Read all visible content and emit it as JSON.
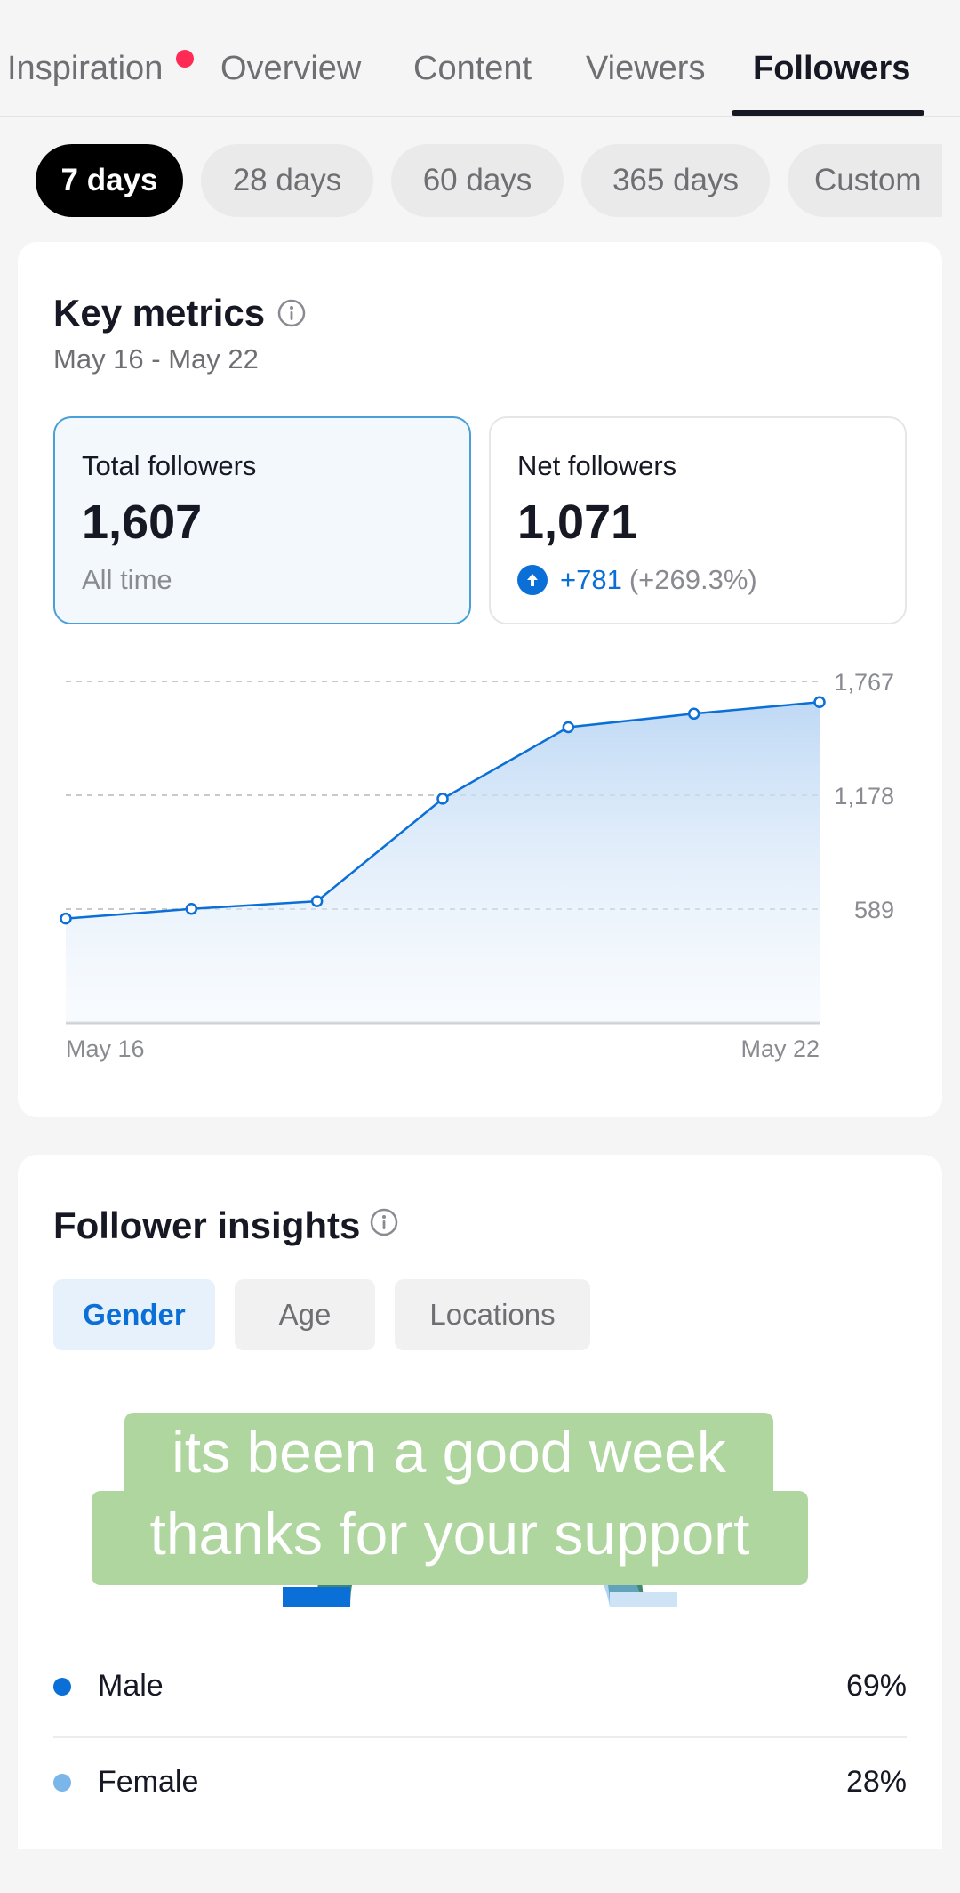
{
  "tabs": [
    {
      "label": "Inspiration",
      "has_notification": true
    },
    {
      "label": "Overview"
    },
    {
      "label": "Content"
    },
    {
      "label": "Viewers"
    },
    {
      "label": "Followers",
      "active": true
    }
  ],
  "ranges": [
    {
      "label": "7 days",
      "active": true
    },
    {
      "label": "28 days"
    },
    {
      "label": "60 days"
    },
    {
      "label": "365 days"
    },
    {
      "label": "Custom"
    }
  ],
  "key_metrics": {
    "title": "Key metrics",
    "date_range": "May 16 - May 22",
    "total": {
      "label": "Total followers",
      "value": "1,607",
      "sub": "All time"
    },
    "net": {
      "label": "Net followers",
      "value": "1,071",
      "change": "+781",
      "change_pct": "(+269.3%)"
    }
  },
  "chart_data": {
    "type": "area",
    "x": [
      "May 16",
      "May 17",
      "May 18",
      "May 19",
      "May 20",
      "May 21",
      "May 22"
    ],
    "x_tick_labels": [
      "May 16",
      "May 22"
    ],
    "series": [
      {
        "values": [
          540,
          590,
          630,
          1160,
          1530,
          1600,
          1660
        ]
      }
    ],
    "y_ticks": [
      589,
      1178,
      1767
    ],
    "y_tick_labels": [
      "589",
      "1,178",
      "1,767"
    ],
    "ylim": [
      0,
      1767
    ],
    "grid": true,
    "color": "#0a6fd6"
  },
  "insights": {
    "title": "Follower insights",
    "tabs": [
      {
        "label": "Gender",
        "active": true
      },
      {
        "label": "Age"
      },
      {
        "label": "Locations"
      }
    ],
    "gender": [
      {
        "label": "Male",
        "value": "69%",
        "color": "#0a6fd6"
      },
      {
        "label": "Female",
        "value": "28%",
        "color": "#7ab6ea"
      }
    ]
  },
  "caption": {
    "line1": "its been a good week",
    "line2": "thanks for your support"
  }
}
